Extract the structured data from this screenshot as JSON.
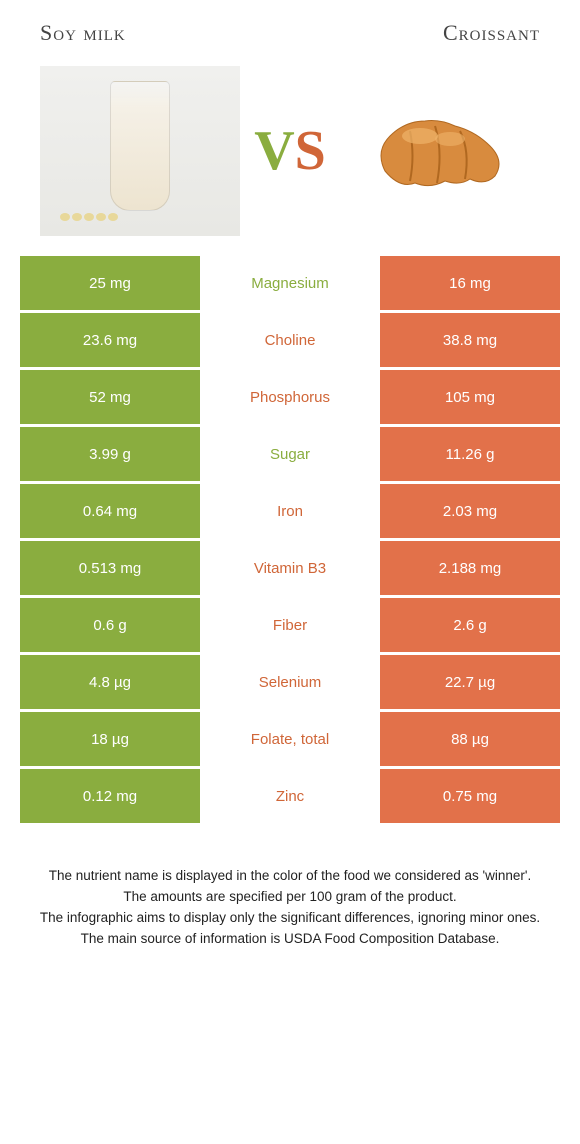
{
  "header": {
    "left_title": "Soy milk",
    "right_title": "Croissant"
  },
  "vs": {
    "v": "V",
    "s": "S"
  },
  "colors": {
    "green": "#8aad3f",
    "orange": "#e2714a",
    "green_text": "#8aad3f",
    "orange_text": "#d06638"
  },
  "rows": [
    {
      "nutrient": "Magnesium",
      "left": "25 mg",
      "right": "16 mg",
      "winner": "left"
    },
    {
      "nutrient": "Choline",
      "left": "23.6 mg",
      "right": "38.8 mg",
      "winner": "right"
    },
    {
      "nutrient": "Phosphorus",
      "left": "52 mg",
      "right": "105 mg",
      "winner": "right"
    },
    {
      "nutrient": "Sugar",
      "left": "3.99 g",
      "right": "11.26 g",
      "winner": "left"
    },
    {
      "nutrient": "Iron",
      "left": "0.64 mg",
      "right": "2.03 mg",
      "winner": "right"
    },
    {
      "nutrient": "Vitamin B3",
      "left": "0.513 mg",
      "right": "2.188 mg",
      "winner": "right"
    },
    {
      "nutrient": "Fiber",
      "left": "0.6 g",
      "right": "2.6 g",
      "winner": "right"
    },
    {
      "nutrient": "Selenium",
      "left": "4.8 µg",
      "right": "22.7 µg",
      "winner": "right"
    },
    {
      "nutrient": "Folate, total",
      "left": "18 µg",
      "right": "88 µg",
      "winner": "right"
    },
    {
      "nutrient": "Zinc",
      "left": "0.12 mg",
      "right": "0.75 mg",
      "winner": "right"
    }
  ],
  "footer": {
    "line1": "The nutrient name is displayed in the color of the food we considered as 'winner'.",
    "line2": "The amounts are specified per 100 gram of the product.",
    "line3": "The infographic aims to display only the significant differences, ignoring minor ones.",
    "line4": "The main source of information is USDA Food Composition Database."
  }
}
